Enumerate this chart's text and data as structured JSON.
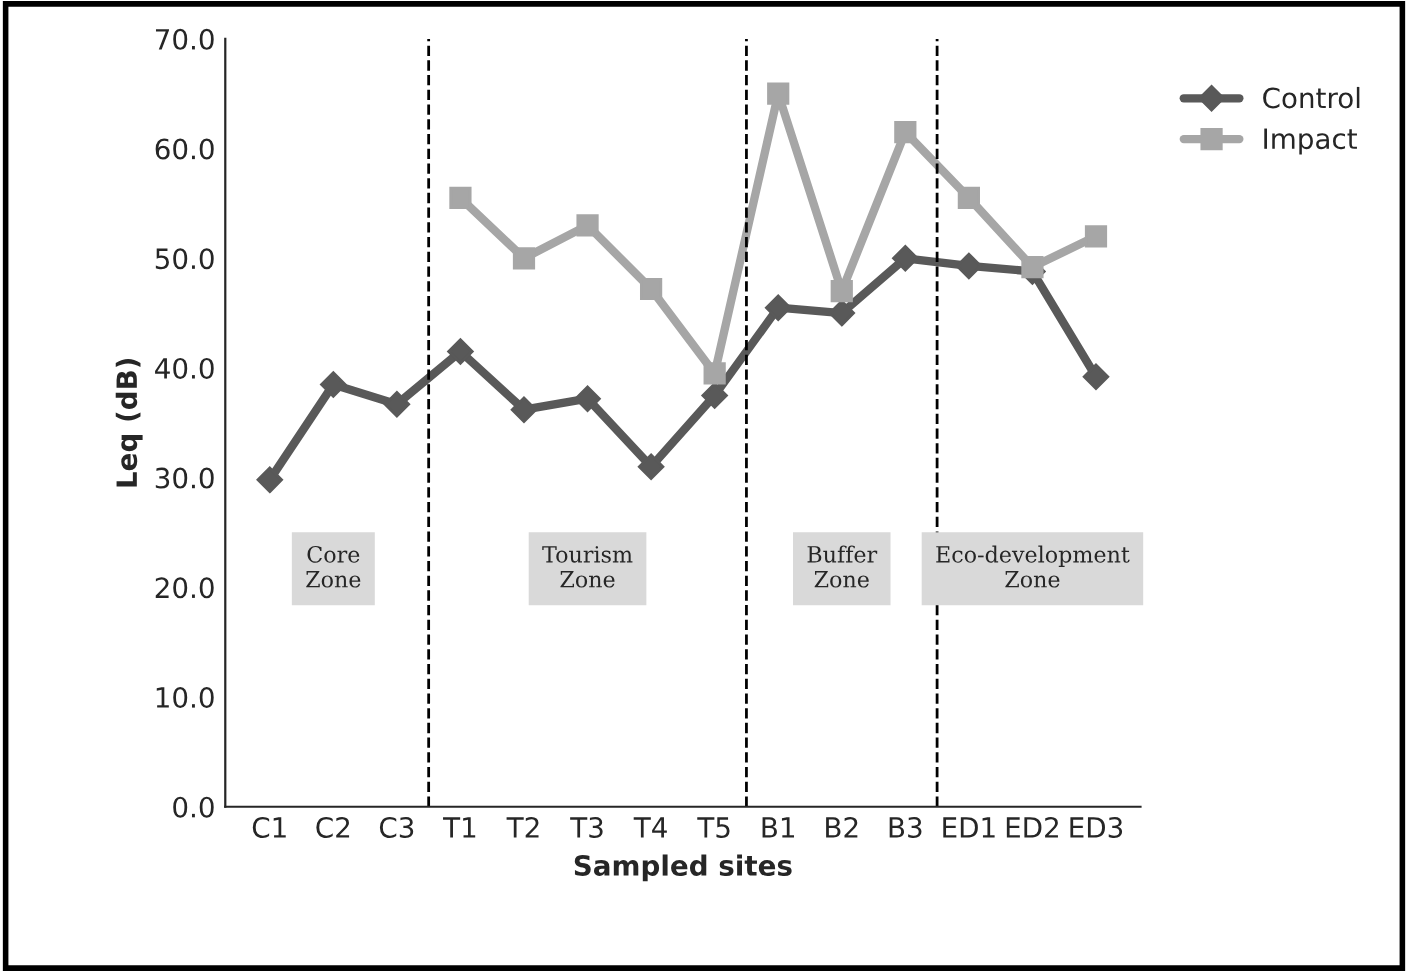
{
  "chart_data": {
    "type": "line",
    "xlabel": "Sampled sites",
    "ylabel": "Leq (dB)",
    "categories": [
      "C1",
      "C2",
      "C3",
      "T1",
      "T2",
      "T3",
      "T4",
      "T5",
      "B1",
      "B2",
      "B3",
      "ED1",
      "ED2",
      "ED3"
    ],
    "series": [
      {
        "name": "Control",
        "color": "#595959",
        "marker": "diamond",
        "values": [
          29.8,
          38.5,
          36.7,
          41.5,
          36.2,
          37.2,
          31.0,
          37.5,
          45.5,
          45.0,
          50.0,
          49.3,
          48.8,
          39.2
        ]
      },
      {
        "name": "Impact",
        "color": "#a6a6a6",
        "marker": "square",
        "values": [
          null,
          null,
          null,
          55.5,
          50.0,
          53.0,
          47.2,
          39.5,
          65.0,
          47.0,
          61.5,
          55.5,
          49.2,
          52.0
        ]
      }
    ],
    "ylim": [
      0,
      70
    ],
    "yticks": [
      {
        "value": 0,
        "label": "0.0"
      },
      {
        "value": 10,
        "label": "10.0"
      },
      {
        "value": 20,
        "label": "20.0"
      },
      {
        "value": 30,
        "label": "30.0"
      },
      {
        "value": 40,
        "label": "40.0"
      },
      {
        "value": 50,
        "label": "50.0"
      },
      {
        "value": 60,
        "label": "60.0"
      },
      {
        "value": 70,
        "label": "70.0"
      }
    ],
    "annotations": [
      "Core\nZone",
      "Tourism\nZone",
      "Buffer\nZone",
      "Eco-development\nZone"
    ],
    "grid": false,
    "legend": "right",
    "line_style": "solid"
  }
}
